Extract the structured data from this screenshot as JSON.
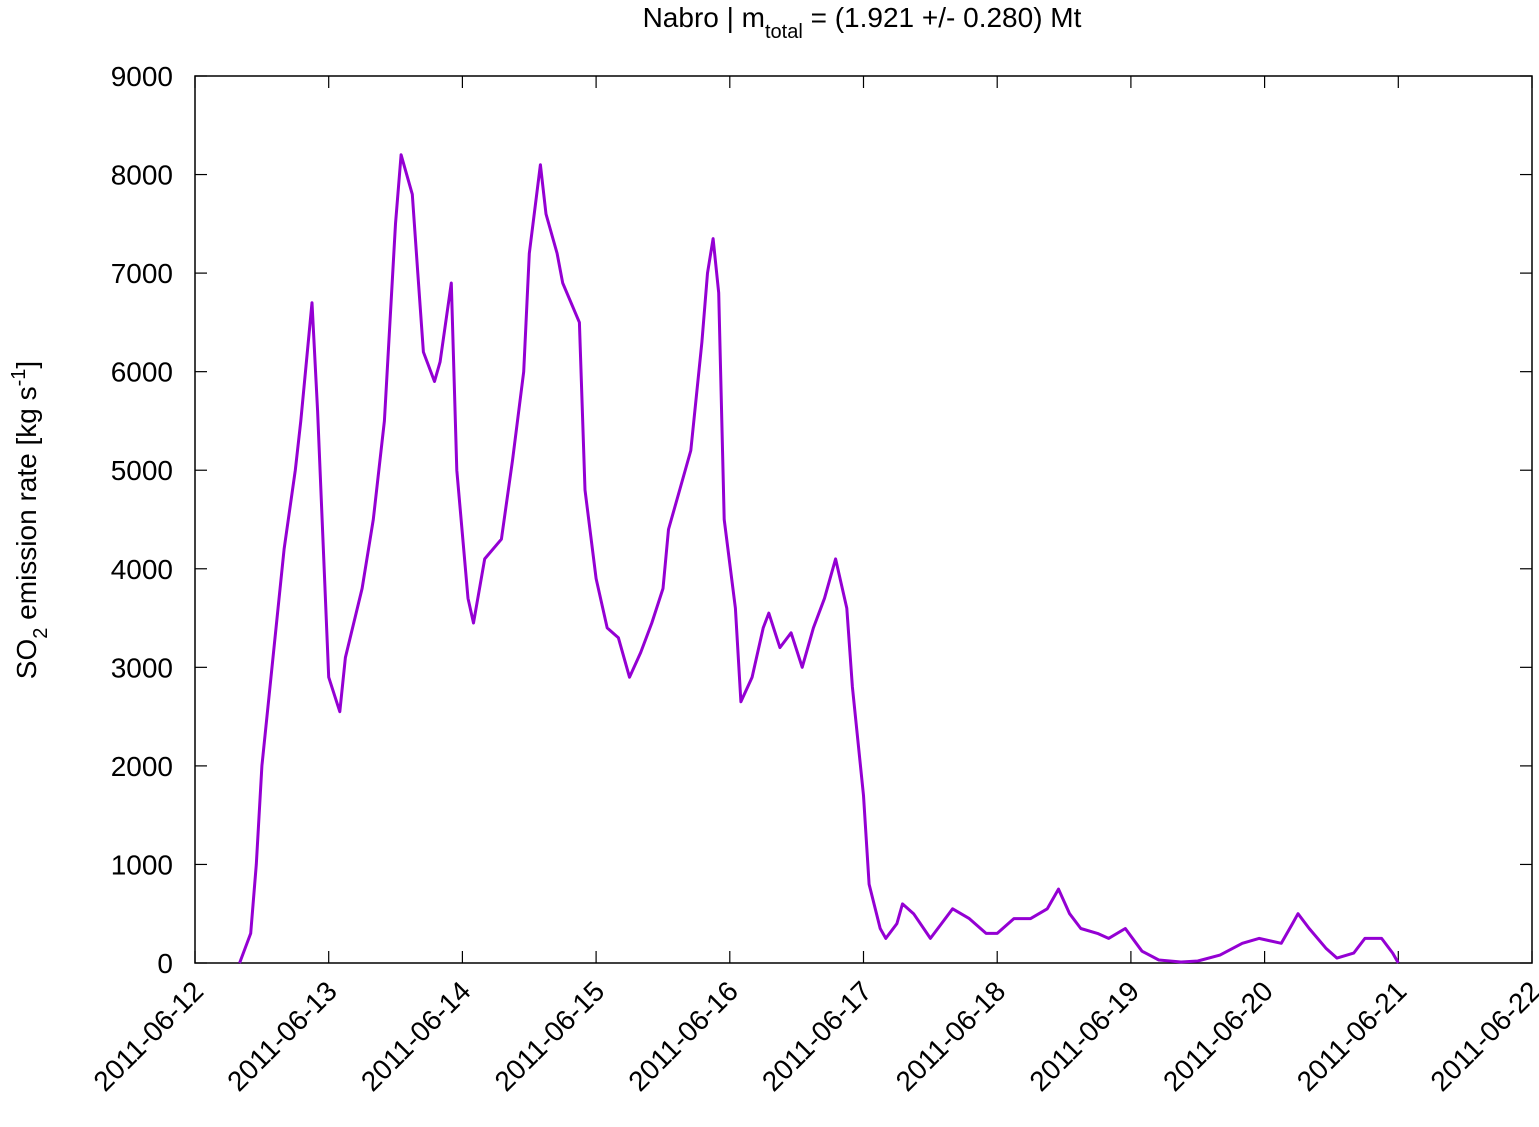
{
  "chart_data": {
    "type": "line",
    "title": [
      "Nabro | m",
      "total",
      " = (1.921 +/- 0.280) Mt"
    ],
    "y_label": [
      "SO",
      "2",
      " emission rate [kg s",
      "-1",
      "]"
    ],
    "x": [
      "2011-06-12T08:00",
      "2011-06-12T10:00",
      "2011-06-12T11:00",
      "2011-06-12T12:00",
      "2011-06-12T14:00",
      "2011-06-12T16:00",
      "2011-06-12T18:00",
      "2011-06-12T19:00",
      "2011-06-12T21:00",
      "2011-06-12T22:00",
      "2011-06-13T00:00",
      "2011-06-13T02:00",
      "2011-06-13T03:00",
      "2011-06-13T06:00",
      "2011-06-13T08:00",
      "2011-06-13T10:00",
      "2011-06-13T12:00",
      "2011-06-13T13:00",
      "2011-06-13T15:00",
      "2011-06-13T16:00",
      "2011-06-13T17:00",
      "2011-06-13T19:00",
      "2011-06-13T20:00",
      "2011-06-13T22:00",
      "2011-06-13T23:00",
      "2011-06-14T01:00",
      "2011-06-14T02:00",
      "2011-06-14T04:00",
      "2011-06-14T07:00",
      "2011-06-14T09:00",
      "2011-06-14T11:00",
      "2011-06-14T12:00",
      "2011-06-14T14:00",
      "2011-06-14T15:00",
      "2011-06-14T17:00",
      "2011-06-14T18:00",
      "2011-06-14T21:00",
      "2011-06-14T22:00",
      "2011-06-15T00:00",
      "2011-06-15T02:00",
      "2011-06-15T04:00",
      "2011-06-15T06:00",
      "2011-06-15T08:00",
      "2011-06-15T10:00",
      "2011-06-15T12:00",
      "2011-06-15T13:00",
      "2011-06-15T15:00",
      "2011-06-15T17:00",
      "2011-06-15T19:00",
      "2011-06-15T20:00",
      "2011-06-15T21:00",
      "2011-06-15T22:00",
      "2011-06-15T23:00",
      "2011-06-16T01:00",
      "2011-06-16T02:00",
      "2011-06-16T04:00",
      "2011-06-16T06:00",
      "2011-06-16T07:00",
      "2011-06-16T09:00",
      "2011-06-16T11:00",
      "2011-06-16T13:00",
      "2011-06-16T15:00",
      "2011-06-16T17:00",
      "2011-06-16T19:00",
      "2011-06-16T21:00",
      "2011-06-16T22:00",
      "2011-06-17T00:00",
      "2011-06-17T01:00",
      "2011-06-17T03:00",
      "2011-06-17T04:00",
      "2011-06-17T06:00",
      "2011-06-17T07:00",
      "2011-06-17T09:00",
      "2011-06-17T12:00",
      "2011-06-17T14:00",
      "2011-06-17T16:00",
      "2011-06-17T19:00",
      "2011-06-17T22:00",
      "2011-06-18T00:00",
      "2011-06-18T03:00",
      "2011-06-18T06:00",
      "2011-06-18T09:00",
      "2011-06-18T11:00",
      "2011-06-18T13:00",
      "2011-06-18T15:00",
      "2011-06-18T18:00",
      "2011-06-18T20:00",
      "2011-06-18T23:00",
      "2011-06-19T02:00",
      "2011-06-19T05:00",
      "2011-06-19T09:00",
      "2011-06-19T12:00",
      "2011-06-19T16:00",
      "2011-06-19T20:00",
      "2011-06-19T23:00",
      "2011-06-20T03:00",
      "2011-06-20T05:00",
      "2011-06-20T06:00",
      "2011-06-20T08:00",
      "2011-06-20T11:00",
      "2011-06-20T13:00",
      "2011-06-20T16:00",
      "2011-06-20T18:00",
      "2011-06-20T21:00",
      "2011-06-20T23:00",
      "2011-06-21T00:00"
    ],
    "series": [
      {
        "color": "#9400d3",
        "values": [
          0,
          300,
          1000,
          2000,
          3100,
          4200,
          5000,
          5500,
          6700,
          5600,
          2900,
          2550,
          3100,
          3800,
          4500,
          5500,
          7500,
          8200,
          7800,
          7000,
          6200,
          5900,
          6100,
          6900,
          5000,
          3700,
          3450,
          4100,
          4300,
          5100,
          6000,
          7200,
          8100,
          7600,
          7200,
          6900,
          6500,
          4800,
          3900,
          3400,
          3300,
          2900,
          3150,
          3450,
          3800,
          4400,
          4800,
          5200,
          6300,
          7000,
          7350,
          6800,
          4500,
          3600,
          2650,
          2900,
          3400,
          3550,
          3200,
          3350,
          3000,
          3400,
          3700,
          4100,
          3600,
          2800,
          1700,
          800,
          350,
          250,
          400,
          600,
          500,
          250,
          400,
          550,
          450,
          300,
          300,
          450,
          450,
          550,
          750,
          500,
          350,
          300,
          250,
          350,
          120,
          30,
          10,
          20,
          80,
          200,
          250,
          200,
          400,
          500,
          350,
          150,
          50,
          100,
          250,
          250,
          100,
          0
        ]
      }
    ],
    "xlim": [
      "2011-06-12",
      "2011-06-22"
    ],
    "xticks": [
      "2011-06-12",
      "2011-06-13",
      "2011-06-14",
      "2011-06-15",
      "2011-06-16",
      "2011-06-17",
      "2011-06-18",
      "2011-06-19",
      "2011-06-20",
      "2011-06-21",
      "2011-06-22"
    ],
    "ylim": [
      0,
      9000
    ],
    "yticks": [
      0,
      1000,
      2000,
      3000,
      4000,
      5000,
      6000,
      7000,
      8000,
      9000
    ],
    "grid": false
  }
}
